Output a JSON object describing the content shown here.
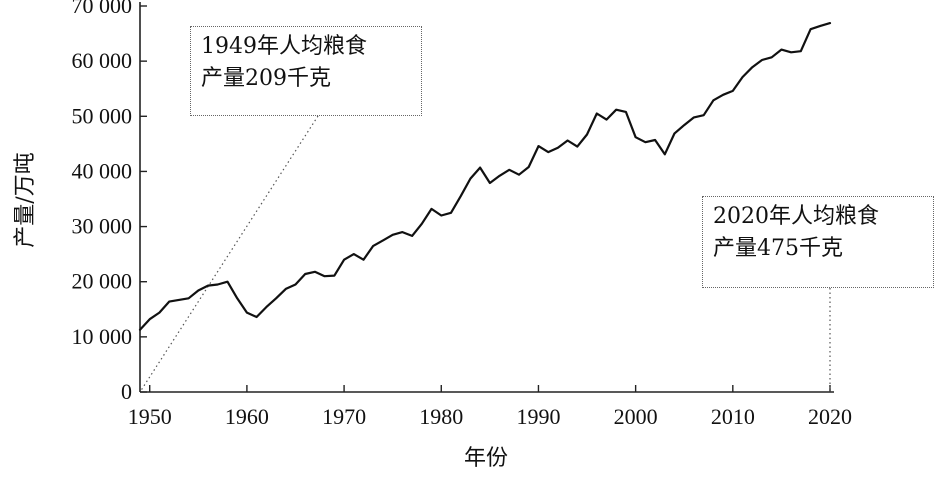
{
  "chart_data": {
    "type": "line",
    "xlabel": "年份",
    "ylabel": "产量/万吨",
    "xlim": [
      1949,
      2020
    ],
    "ylim": [
      0,
      70000
    ],
    "x_ticks": [
      1950,
      1960,
      1970,
      1980,
      1990,
      2000,
      2010,
      2020
    ],
    "y_ticks": [
      0,
      10000,
      20000,
      30000,
      40000,
      50000,
      60000,
      70000
    ],
    "y_tick_labels": [
      "0",
      "10 000",
      "20 000",
      "30 000",
      "40 000",
      "50 000",
      "60 000",
      "70 000"
    ],
    "grid": false,
    "series": [
      {
        "x": [
          1949,
          1950,
          1951,
          1952,
          1953,
          1954,
          1955,
          1956,
          1957,
          1958,
          1959,
          1960,
          1961,
          1962,
          1963,
          1964,
          1965,
          1966,
          1967,
          1968,
          1969,
          1970,
          1971,
          1972,
          1973,
          1974,
          1975,
          1976,
          1977,
          1978,
          1979,
          1980,
          1981,
          1982,
          1983,
          1984,
          1985,
          1986,
          1987,
          1988,
          1989,
          1990,
          1991,
          1992,
          1993,
          1994,
          1995,
          1996,
          1997,
          1998,
          1999,
          2000,
          2001,
          2002,
          2003,
          2004,
          2005,
          2006,
          2007,
          2008,
          2009,
          2010,
          2011,
          2012,
          2013,
          2014,
          2015,
          2016,
          2017,
          2018,
          2019,
          2020
        ],
        "values": [
          11300,
          13200,
          14400,
          16400,
          16700,
          17000,
          18400,
          19300,
          19500,
          20000,
          17000,
          14400,
          13600,
          15400,
          17000,
          18700,
          19500,
          21400,
          21800,
          21000,
          21100,
          24000,
          25000,
          24000,
          26500,
          27500,
          28500,
          29000,
          28300,
          30500,
          33200,
          32000,
          32500,
          35500,
          38700,
          40700,
          37900,
          39200,
          40300,
          39400,
          40800,
          44600,
          43500,
          44300,
          45600,
          44500,
          46700,
          50500,
          49400,
          51200,
          50800,
          46200,
          45300,
          45700,
          43100,
          46900,
          48400,
          49800,
          50200,
          52900,
          53900,
          54600,
          57100,
          58900,
          60200,
          60700,
          62100,
          61600,
          61800,
          65800,
          66400,
          66900
        ]
      }
    ],
    "annotations": [
      {
        "lines": [
          "1949年人均粮食",
          "产量209千克"
        ],
        "points_to_x": 1949,
        "points_to_y": 0
      },
      {
        "lines": [
          "2020年人均粮食",
          "产量475千克"
        ],
        "points_to_x": 2020,
        "points_to_y": 0
      }
    ]
  }
}
